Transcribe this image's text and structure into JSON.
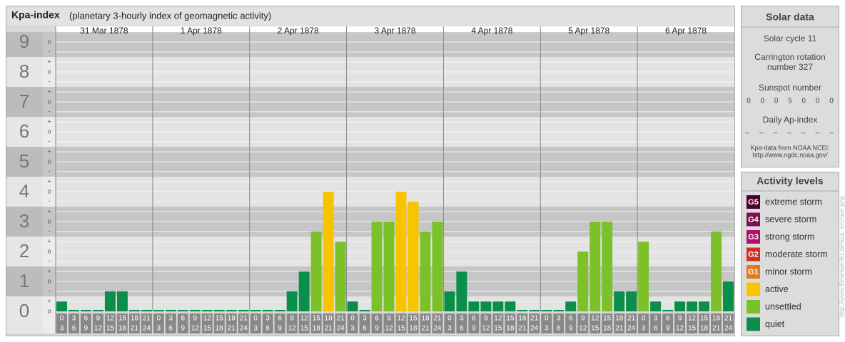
{
  "chart_data": {
    "type": "bar",
    "title": "Kpa-index",
    "subtitle": "(planetary 3-hourly index of geomagnetic activity)",
    "ylim": [
      0,
      9.33
    ],
    "yticks": [
      0,
      1,
      2,
      3,
      4,
      5,
      6,
      7,
      8,
      9
    ],
    "yminor_ticks": [
      {
        "value": 0,
        "label": "o"
      },
      {
        "value": 0.33,
        "label": "+"
      },
      {
        "value": 0.67,
        "label": "-"
      },
      {
        "value": 1,
        "label": "o"
      },
      {
        "value": 1.33,
        "label": "+"
      },
      {
        "value": 1.67,
        "label": "-"
      },
      {
        "value": 2,
        "label": "o"
      },
      {
        "value": 2.33,
        "label": "+"
      },
      {
        "value": 2.67,
        "label": "-"
      },
      {
        "value": 3,
        "label": "o"
      },
      {
        "value": 3.33,
        "label": "+"
      },
      {
        "value": 3.67,
        "label": "-"
      },
      {
        "value": 4,
        "label": "o"
      },
      {
        "value": 4.33,
        "label": "+"
      },
      {
        "value": 4.67,
        "label": "-"
      },
      {
        "value": 5,
        "label": "o"
      },
      {
        "value": 5.33,
        "label": "+"
      },
      {
        "value": 5.67,
        "label": "-"
      },
      {
        "value": 6,
        "label": "o"
      },
      {
        "value": 6.33,
        "label": "+"
      },
      {
        "value": 6.67,
        "label": "-"
      },
      {
        "value": 7,
        "label": "o"
      },
      {
        "value": 7.33,
        "label": "+"
      },
      {
        "value": 7.67,
        "label": "-"
      },
      {
        "value": 8,
        "label": "o"
      },
      {
        "value": 8.33,
        "label": "+"
      },
      {
        "value": 8.67,
        "label": "-"
      },
      {
        "value": 9,
        "label": "o"
      }
    ],
    "hour_labels": [
      [
        "0",
        "3"
      ],
      [
        "3",
        "6"
      ],
      [
        "6",
        "9"
      ],
      [
        "9",
        "12"
      ],
      [
        "12",
        "15"
      ],
      [
        "15",
        "18"
      ],
      [
        "18",
        "21"
      ],
      [
        "21",
        "24"
      ]
    ],
    "series": [
      {
        "name": "31 Mar 1878",
        "values": [
          0.33,
          0,
          0,
          0,
          0.67,
          0.67,
          0,
          0
        ],
        "colors": [
          "#0a8f4a",
          "#0a8f4a",
          "#0a8f4a",
          "#0a8f4a",
          "#0a8f4a",
          "#0a8f4a",
          "#0a8f4a",
          "#0a8f4a"
        ]
      },
      {
        "name": "1 Apr 1878",
        "values": [
          0,
          0,
          0,
          0,
          0,
          0,
          0,
          0
        ],
        "colors": [
          "#0a8f4a",
          "#0a8f4a",
          "#0a8f4a",
          "#0a8f4a",
          "#0a8f4a",
          "#0a8f4a",
          "#0a8f4a",
          "#0a8f4a"
        ]
      },
      {
        "name": "2 Apr 1878",
        "values": [
          0,
          0,
          0,
          0.67,
          1.33,
          2.67,
          4,
          2.33
        ],
        "colors": [
          "#0a8f4a",
          "#0a8f4a",
          "#0a8f4a",
          "#0a8f4a",
          "#0a8f4a",
          "#7dc12a",
          "#f8c400",
          "#7dc12a"
        ]
      },
      {
        "name": "3 Apr 1878",
        "values": [
          0.33,
          0,
          3,
          3,
          4,
          3.67,
          2.67,
          3
        ],
        "colors": [
          "#0a8f4a",
          "#0a8f4a",
          "#7dc12a",
          "#7dc12a",
          "#f8c400",
          "#f8c400",
          "#7dc12a",
          "#7dc12a"
        ]
      },
      {
        "name": "4 Apr 1878",
        "values": [
          0.67,
          1.33,
          0.33,
          0.33,
          0.33,
          0.33,
          0,
          0
        ],
        "colors": [
          "#0a8f4a",
          "#0a8f4a",
          "#0a8f4a",
          "#0a8f4a",
          "#0a8f4a",
          "#0a8f4a",
          "#0a8f4a",
          "#0a8f4a"
        ]
      },
      {
        "name": "5 Apr 1878",
        "values": [
          0,
          0,
          0.33,
          2,
          3,
          3,
          0.67,
          0.67
        ],
        "colors": [
          "#0a8f4a",
          "#0a8f4a",
          "#0a8f4a",
          "#7dc12a",
          "#7dc12a",
          "#7dc12a",
          "#0a8f4a",
          "#0a8f4a"
        ]
      },
      {
        "name": "6 Apr 1878",
        "values": [
          2.33,
          0.33,
          0,
          0.33,
          0.33,
          0.33,
          2.67,
          1
        ],
        "colors": [
          "#7dc12a",
          "#0a8f4a",
          "#0a8f4a",
          "#0a8f4a",
          "#0a8f4a",
          "#0a8f4a",
          "#7dc12a",
          "#0a8f4a"
        ]
      }
    ]
  },
  "solar_data": {
    "title": "Solar data",
    "cycle": "Solar cycle 11",
    "carrington": [
      "Carrington rotation",
      "number 327"
    ],
    "sunspot_title": "Sunspot number",
    "sunspot_values": [
      0,
      0,
      0,
      5,
      0,
      0,
      0
    ],
    "ap_title": "Daily Ap-index",
    "ap_values": [
      "–",
      "–",
      "–",
      "–",
      "–",
      "–",
      "–"
    ],
    "source": [
      "Kpa-data from NOAA NCEI:",
      "http://www.ngdc.noaa.gov/"
    ]
  },
  "activity_levels": {
    "title": "Activity levels",
    "items": [
      {
        "badge": "G5",
        "label": "extreme storm",
        "color": "#4a0028"
      },
      {
        "badge": "G4",
        "label": "severe storm",
        "color": "#7a1050"
      },
      {
        "badge": "G3",
        "label": "strong storm",
        "color": "#b0106a"
      },
      {
        "badge": "G2",
        "label": "moderate storm",
        "color": "#d03020"
      },
      {
        "badge": "G1",
        "label": "minor storm",
        "color": "#e07a20"
      },
      {
        "badge": null,
        "label": "active",
        "color": "#f8c400"
      },
      {
        "badge": null,
        "label": "unsettled",
        "color": "#7dc12a"
      },
      {
        "badge": null,
        "label": "quiet",
        "color": "#0a8f4a"
      }
    ]
  },
  "watermark": "http://www.fieselwerfer.de/kpa_archive.php"
}
